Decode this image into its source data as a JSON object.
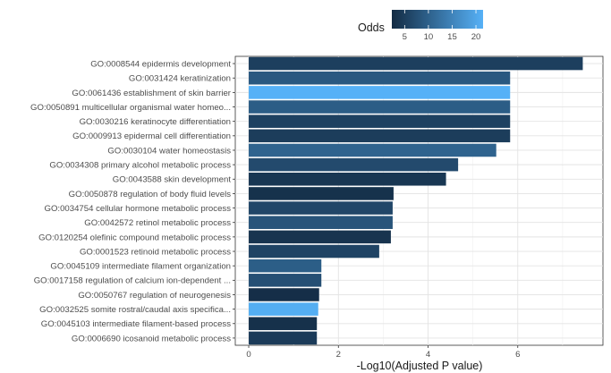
{
  "chart_data": {
    "type": "bar",
    "orientation": "horizontal",
    "categories": [
      "GO:0008544 epidermis development",
      "GO:0031424 keratinization",
      "GO:0061436 establishment of skin barrier",
      "GO:0050891 multicellular organismal water homeo...",
      "GO:0030216 keratinocyte differentiation",
      "GO:0009913 epidermal cell differentiation",
      "GO:0030104 water homeostasis",
      "GO:0034308 primary alcohol metabolic process",
      "GO:0043588 skin development",
      "GO:0050878 regulation of body fluid levels",
      "GO:0034754 cellular hormone metabolic process",
      "GO:0042572 retinol metabolic process",
      "GO:0120254 olefinic compound metabolic process",
      "GO:0001523 retinoid metabolic process",
      "GO:0045109 intermediate filament organization",
      "GO:0017158 regulation of calcium ion-dependent ...",
      "GO:0050767 regulation of neurogenesis",
      "GO:0032525 somite rostral/caudal axis specifica...",
      "GO:0045103 intermediate filament-based process",
      "GO:0006690 icosanoid metabolic process"
    ],
    "values": [
      7.45,
      5.83,
      5.83,
      5.83,
      5.83,
      5.83,
      5.52,
      4.67,
      4.4,
      3.23,
      3.21,
      3.21,
      3.17,
      2.91,
      1.62,
      1.62,
      1.57,
      1.55,
      1.52,
      1.52
    ],
    "odds": [
      5.2,
      8.8,
      21.5,
      9.4,
      5.5,
      4.9,
      10.3,
      6.8,
      4.0,
      3.3,
      6.2,
      8.2,
      3.6,
      5.8,
      9.6,
      7.5,
      2.8,
      21.0,
      3.1,
      4.6
    ],
    "xlabel": "-Log10(Adjusted P value)",
    "ylabel": "",
    "xlim": [
      -0.3,
      7.9
    ],
    "xticks": [
      0,
      2,
      4,
      6
    ],
    "grid": true,
    "legend": {
      "title": "Odds",
      "placement": "top",
      "min": 2.3,
      "max": 21.5,
      "ticks": [
        5,
        10,
        15,
        20
      ],
      "color_low": "#132b43",
      "color_high": "#56b1f7"
    }
  }
}
